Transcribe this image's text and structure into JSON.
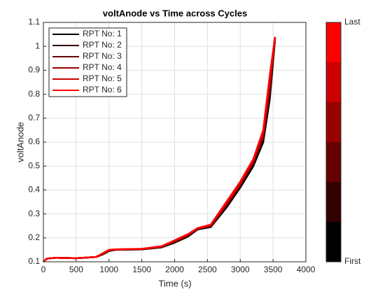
{
  "chart_data": {
    "type": "line",
    "title": "voltAnode vs Time  across Cycles",
    "xlabel": "Time (s)",
    "ylabel": "voltAnode",
    "x": [
      0,
      50,
      200,
      500,
      800,
      900,
      1000,
      1100,
      1500,
      1800,
      2000,
      2200,
      2350,
      2550,
      2800,
      3000,
      3200,
      3350,
      3450,
      3530
    ],
    "series": [
      {
        "name": "RPT No: 1",
        "color": "#000000",
        "values": [
          0.1,
          0.113,
          0.117,
          0.115,
          0.12,
          0.13,
          0.145,
          0.15,
          0.152,
          0.16,
          0.18,
          0.205,
          0.235,
          0.245,
          0.33,
          0.41,
          0.5,
          0.6,
          0.78,
          1.03
        ]
      },
      {
        "name": "RPT No: 2",
        "color": "#330000",
        "values": [
          0.1,
          0.113,
          0.117,
          0.115,
          0.12,
          0.131,
          0.146,
          0.15,
          0.152,
          0.161,
          0.182,
          0.207,
          0.237,
          0.247,
          0.335,
          0.415,
          0.51,
          0.61,
          0.8,
          1.032
        ]
      },
      {
        "name": "RPT No: 3",
        "color": "#660000",
        "values": [
          0.1,
          0.113,
          0.117,
          0.115,
          0.12,
          0.132,
          0.147,
          0.151,
          0.153,
          0.162,
          0.184,
          0.209,
          0.238,
          0.249,
          0.34,
          0.42,
          0.515,
          0.62,
          0.82,
          1.034
        ]
      },
      {
        "name": "RPT No: 4",
        "color": "#990000",
        "values": [
          0.1,
          0.113,
          0.117,
          0.115,
          0.12,
          0.133,
          0.148,
          0.151,
          0.153,
          0.163,
          0.186,
          0.211,
          0.239,
          0.251,
          0.345,
          0.425,
          0.52,
          0.63,
          0.84,
          1.036
        ]
      },
      {
        "name": "RPT No: 5",
        "color": "#cc0000",
        "values": [
          0.1,
          0.113,
          0.117,
          0.115,
          0.12,
          0.134,
          0.149,
          0.152,
          0.154,
          0.164,
          0.188,
          0.213,
          0.24,
          0.253,
          0.35,
          0.43,
          0.525,
          0.64,
          0.86,
          1.038
        ]
      },
      {
        "name": "RPT No: 6",
        "color": "#ff0000",
        "values": [
          0.1,
          0.113,
          0.117,
          0.115,
          0.12,
          0.135,
          0.15,
          0.152,
          0.154,
          0.165,
          0.19,
          0.215,
          0.241,
          0.255,
          0.355,
          0.435,
          0.53,
          0.65,
          0.88,
          1.04
        ]
      }
    ],
    "xlim": [
      0,
      4000
    ],
    "xticks": [
      0,
      500,
      1000,
      1500,
      2000,
      2500,
      3000,
      3500,
      4000
    ],
    "ylim": [
      0.1,
      1.1
    ],
    "yticks": [
      0.1,
      0.2,
      0.3,
      0.4,
      0.5,
      0.6,
      0.7,
      0.8,
      0.9,
      1,
      1.1
    ],
    "grid": true,
    "legend": "northwest",
    "colorbar": {
      "labels": [
        "First",
        "Last"
      ]
    }
  }
}
